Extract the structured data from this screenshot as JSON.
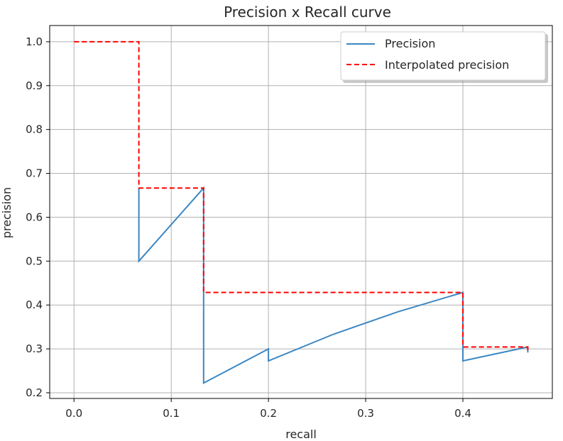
{
  "chart_data": {
    "type": "line",
    "title": "Precision x Recall curve",
    "xlabel": "recall",
    "ylabel": "precision",
    "xlim": [
      -0.025,
      0.492
    ],
    "ylim": [
      0.187,
      1.037
    ],
    "grid": true,
    "legend_position": "top-right",
    "xticks": [
      0.0,
      0.1,
      0.2,
      0.3,
      0.4
    ],
    "xtick_labels": [
      "0.0",
      "0.1",
      "0.2",
      "0.3",
      "0.4"
    ],
    "yticks": [
      0.2,
      0.3,
      0.4,
      0.5,
      0.6,
      0.7,
      0.8,
      0.9,
      1.0
    ],
    "ytick_labels": [
      "0.2",
      "0.3",
      "0.4",
      "0.5",
      "0.6",
      "0.7",
      "0.8",
      "0.9",
      "1.0"
    ],
    "series": [
      {
        "name": "Precision",
        "color": "#3b87c4",
        "style": "solid",
        "x": [
          0.0667,
          0.0667,
          0.1333,
          0.1333,
          0.2,
          0.2,
          0.2667,
          0.3333,
          0.4,
          0.4,
          0.4667,
          0.4667
        ],
        "y": [
          0.6667,
          0.5,
          0.6667,
          0.2222,
          0.3,
          0.2727,
          0.3333,
          0.3846,
          0.4286,
          0.2727,
          0.3043,
          0.2917
        ]
      },
      {
        "name": "Interpolated precision",
        "color": "#ff0000",
        "style": "dashed",
        "x": [
          0.0,
          0.0667,
          0.0667,
          0.1333,
          0.1333,
          0.4,
          0.4,
          0.4667,
          0.4667
        ],
        "y": [
          1.0,
          1.0,
          0.6667,
          0.6667,
          0.4286,
          0.4286,
          0.3043,
          0.3043,
          0.2917
        ]
      }
    ]
  }
}
